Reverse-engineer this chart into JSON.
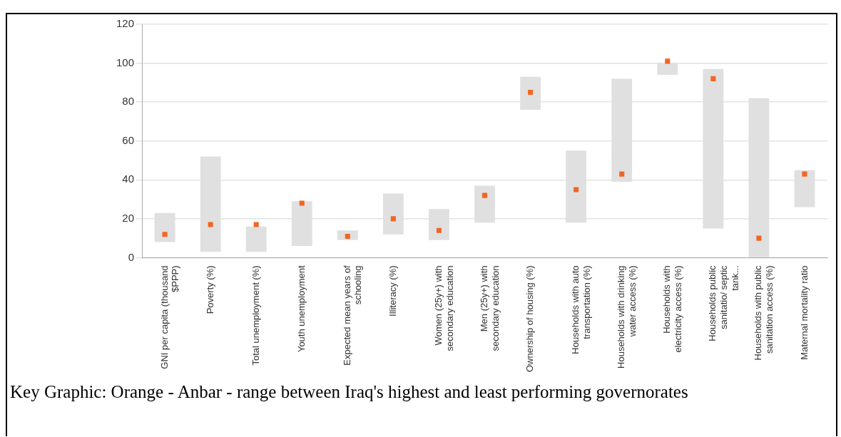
{
  "chart_data": {
    "type": "bar",
    "categories": [
      "GNI per capita (thousand $PPP)",
      "Poverty (%)",
      "Total unemployment (%)",
      "Youth unemployment",
      "Expected mean years of schooling",
      "Illiteracy (%)",
      "Women (25y+) with secondary education",
      "Men (25y+) with secondary education",
      "Ownership of housing (%)",
      "Households with auto transportation (%)",
      "Households with drinking water access (%)",
      "Households with electricity access (%)",
      "Households public sanitatio/ septic tank...",
      "Households with public sanitation access (%)",
      "Maternal mortality ratio"
    ],
    "series": [
      {
        "type": "bar",
        "color": "#e0e0e0",
        "base": [
          8,
          3,
          3,
          6,
          9,
          12,
          9,
          18,
          76,
          18,
          39,
          94,
          15,
          0,
          26
        ],
        "values": [
          15,
          49,
          13,
          23,
          5,
          21,
          16,
          19,
          17,
          37,
          53,
          6,
          82,
          82,
          19
        ]
      },
      {
        "type": "scatter",
        "marker": "square",
        "color": "#f26522",
        "x": [
          "GNI per capita (thousand $PPP)",
          "Poverty (%)",
          "Total unemployment (%)",
          "Youth unemployment",
          "Expected mean years of schooling",
          "Illiteracy (%)",
          "Women (25y+) with secondary education",
          "Men (25y+) with secondary education",
          "Ownership of housing (%)",
          "Households with auto transportation (%)",
          "Households with drinking water access (%)",
          "Households with electricity access (%)",
          "Households public sanitatio/ septic tank...",
          "Households with public sanitation access (%)",
          "Maternal mortality ratio"
        ],
        "values": [
          12,
          17,
          17,
          28,
          11,
          20,
          14,
          32,
          85,
          35,
          43,
          101,
          92,
          10,
          43
        ]
      }
    ],
    "ylim": [
      0,
      120
    ],
    "yticks": [
      0,
      20,
      40,
      60,
      80,
      100,
      120
    ],
    "grid": "y",
    "legend": false,
    "annotations": [
      "Key Graphic: Orange - Anbar - range between Iraq's highest and least performing governorates"
    ]
  }
}
